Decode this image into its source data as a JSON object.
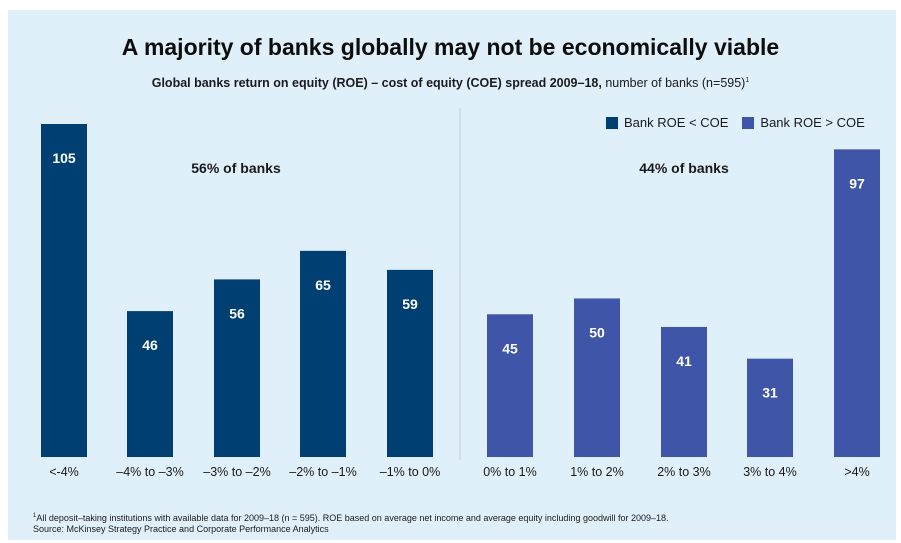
{
  "title": "A majority of banks globally may not be economically viable",
  "subtitle_bold": "Global banks return on equity (ROE) – cost of equity (COE) spread 2009–18,",
  "subtitle_rest": " number of banks (n=595)",
  "subtitle_note_mark": "1",
  "footnote_mark": "1",
  "footnote_line1": "All deposit–taking institutions with available data for 2009–18 (n = 595).  ROE based on average net income and average equity including goodwill for 2009–18.",
  "footnote_line2": "Source: McKinsey Strategy Practice and Corporate Performance Analytics",
  "colors": {
    "below": "#003f72",
    "above": "#3f55a8",
    "background": "#dff0fb",
    "divider": "#b9cfdc"
  },
  "chart_data": {
    "type": "bar",
    "categories": [
      "<-4%",
      "–4% to –3%",
      "–3% to –2%",
      "–2% to –1%",
      "–1% to 0%",
      "0% to 1%",
      "1% to 2%",
      "2% to 3%",
      "3% to 4%",
      ">4%"
    ],
    "values": [
      105,
      46,
      56,
      65,
      59,
      45,
      50,
      41,
      31,
      97
    ],
    "groups": [
      "below",
      "below",
      "below",
      "below",
      "below",
      "above",
      "above",
      "above",
      "above",
      "above"
    ],
    "legend": [
      {
        "key": "below",
        "label": "Bank ROE < COE"
      },
      {
        "key": "above",
        "label": "Bank ROE > COE"
      }
    ],
    "legend_position": "top-right",
    "annotations": [
      "56% of banks",
      "44% of banks"
    ],
    "ylim": [
      0,
      105
    ],
    "grid": false
  }
}
